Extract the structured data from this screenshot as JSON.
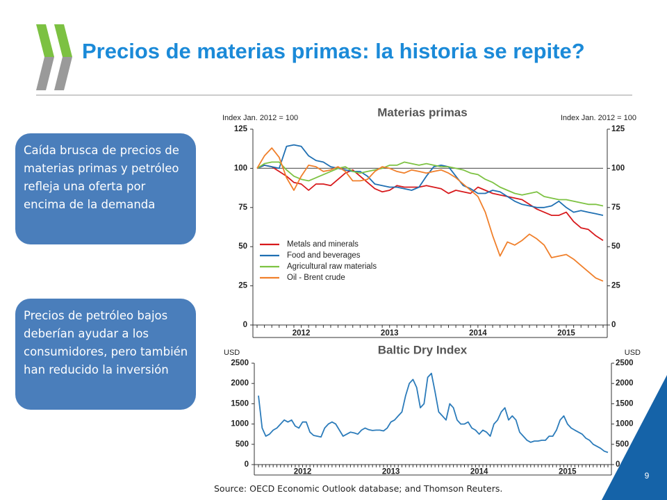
{
  "title": "Precios de materias primas: la historia se repite?",
  "boxes": [
    "Caída brusca de precios de materias primas y petróleo refleja una oferta por encima de la demanda",
    "Precios de petróleo bajos deberían ayudar a los consumidores, pero también han reducido la inversión"
  ],
  "source": "Source: OECD Economic Outlook database; and Thomson Reuters.",
  "page_number": "9",
  "chart_data": [
    {
      "type": "line",
      "title": "Materias primas",
      "ylabel": "Index Jan. 2012 = 100",
      "y2label": "Index Jan. 2012 = 100",
      "categories": [
        null,
        null,
        null,
        null,
        null,
        null,
        "2012",
        null,
        null,
        null,
        null,
        null,
        null,
        null,
        null,
        null,
        null,
        null,
        "2013",
        null,
        null,
        null,
        null,
        null,
        null,
        null,
        null,
        null,
        null,
        null,
        "2014",
        null,
        null,
        null,
        null,
        null,
        null,
        null,
        null,
        null,
        null,
        null,
        "2015",
        null,
        null,
        null,
        null,
        null
      ],
      "series": [
        {
          "name": "Metals and minerals",
          "color": "#d7191c",
          "values": [
            100,
            102,
            101,
            98,
            95,
            91,
            90,
            86,
            90,
            90,
            89,
            93,
            97,
            99,
            95,
            91,
            87,
            85,
            86,
            89,
            88,
            88,
            88,
            89,
            88,
            87,
            84,
            86,
            85,
            84,
            88,
            86,
            84,
            83,
            82,
            81,
            80,
            77,
            74,
            72,
            70,
            70,
            72,
            66,
            62,
            61,
            57,
            54
          ]
        },
        {
          "name": "Food and beverages",
          "color": "#1f6fb2",
          "values": [
            100,
            102,
            101,
            100,
            114,
            115,
            114,
            108,
            105,
            104,
            101,
            100,
            99,
            98,
            98,
            95,
            90,
            89,
            88,
            88,
            87,
            86,
            88,
            95,
            101,
            102,
            101,
            95,
            89,
            87,
            84,
            84,
            86,
            85,
            82,
            79,
            77,
            76,
            75,
            75,
            76,
            79,
            75,
            72,
            73,
            72,
            71,
            70
          ]
        },
        {
          "name": "Agricultural raw materials",
          "color": "#7dc242",
          "values": [
            100,
            103,
            104,
            104,
            99,
            95,
            93,
            92,
            94,
            96,
            98,
            100,
            101,
            98,
            97,
            98,
            99,
            100,
            102,
            102,
            104,
            103,
            102,
            103,
            102,
            101,
            101,
            100,
            99,
            97,
            96,
            93,
            91,
            88,
            86,
            84,
            83,
            84,
            85,
            82,
            81,
            80,
            80,
            79,
            78,
            77,
            77,
            76
          ]
        },
        {
          "name": "Oil - Brent crude",
          "color": "#f07f2a",
          "values": [
            100,
            108,
            113,
            107,
            94,
            86,
            95,
            102,
            101,
            98,
            99,
            101,
            98,
            92,
            92,
            93,
            98,
            101,
            100,
            98,
            97,
            99,
            98,
            97,
            98,
            99,
            97,
            94,
            90,
            86,
            82,
            72,
            57,
            44,
            53,
            51,
            54,
            58,
            55,
            51,
            43,
            44,
            45,
            42,
            38,
            34,
            30,
            28
          ]
        }
      ],
      "hline": 100,
      "ylim": [
        0,
        125
      ],
      "yticks": [
        0,
        25,
        50,
        75,
        100,
        125
      ],
      "y2lim": [
        0,
        125
      ],
      "y2ticks": [
        0,
        25,
        50,
        75,
        100,
        125
      ],
      "legend": "lower left"
    },
    {
      "type": "line",
      "title": "Baltic Dry Index",
      "ylabel": "USD",
      "y2label": "USD",
      "categories": [
        null,
        null,
        null,
        null,
        null,
        null,
        null,
        null,
        null,
        null,
        null,
        null,
        "2012",
        null,
        null,
        null,
        null,
        null,
        null,
        null,
        null,
        null,
        null,
        null,
        null,
        null,
        null,
        null,
        null,
        null,
        null,
        null,
        null,
        null,
        null,
        null,
        "2013",
        null,
        null,
        null,
        null,
        null,
        null,
        null,
        null,
        null,
        null,
        null,
        null,
        null,
        null,
        null,
        null,
        null,
        null,
        null,
        null,
        null,
        null,
        null,
        "2014",
        null,
        null,
        null,
        null,
        null,
        null,
        null,
        null,
        null,
        null,
        null,
        null,
        null,
        null,
        null,
        null,
        null,
        null,
        null,
        null,
        null,
        null,
        null,
        "2015",
        null,
        null,
        null,
        null,
        null,
        null,
        null,
        null,
        null,
        null,
        null
      ],
      "series": [
        {
          "name": "Baltic Dry Index",
          "color": "#2b7bba",
          "values": [
            1700,
            900,
            700,
            750,
            850,
            900,
            1000,
            1100,
            1050,
            1100,
            950,
            900,
            1050,
            1050,
            800,
            720,
            700,
            680,
            900,
            1000,
            1050,
            1000,
            850,
            700,
            750,
            800,
            780,
            750,
            850,
            900,
            860,
            840,
            850,
            850,
            830,
            900,
            1050,
            1100,
            1200,
            1300,
            1700,
            2000,
            2100,
            1900,
            1400,
            1500,
            2150,
            2250,
            1800,
            1300,
            1200,
            1100,
            1500,
            1400,
            1100,
            1000,
            1000,
            1050,
            900,
            850,
            750,
            850,
            800,
            700,
            1000,
            1100,
            1300,
            1400,
            1100,
            1200,
            1100,
            800,
            700,
            600,
            550,
            580,
            580,
            600,
            600,
            700,
            700,
            850,
            1100,
            1200,
            1000,
            900,
            850,
            800,
            750,
            650,
            600,
            500,
            450,
            400,
            330,
            300
          ]
        }
      ],
      "ylim": [
        0,
        2500
      ],
      "yticks": [
        0,
        500,
        1000,
        1500,
        2000,
        2500
      ],
      "y2lim": [
        0,
        2500
      ],
      "y2ticks": [
        0,
        500,
        1000,
        1500,
        2000,
        2500
      ]
    }
  ]
}
